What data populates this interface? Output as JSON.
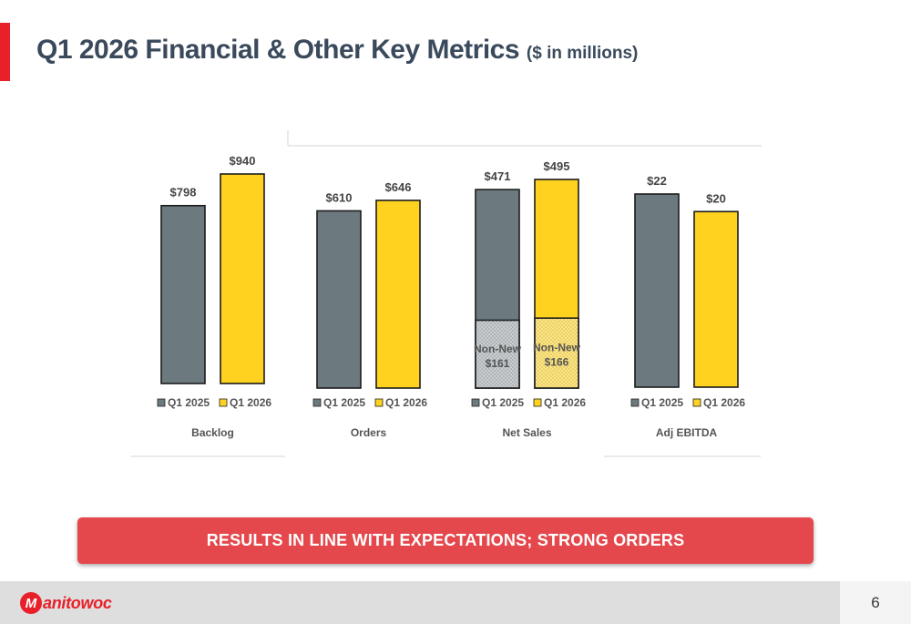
{
  "page": {
    "title": "Q1 2026 Financial & Other Key Metrics",
    "title_suffix": "($ in millions)",
    "banner": "RESULTS IN LINE WITH EXPECTATIONS; STRONG ORDERS",
    "page_number": "6",
    "logo_text": "anitowoc",
    "logo_letter": "M"
  },
  "colors": {
    "accent_red": "#e8202a",
    "title_color": "#3a4a5c",
    "q1_2025_bar": "#6c7a80",
    "q1_2026_bar": "#ffd21f",
    "banner_bg": "#e5484c",
    "footer_bg": "#dedede"
  },
  "chart_data": [
    {
      "type": "bar",
      "title": "Backlog",
      "categories": [
        "Q1 2025",
        "Q1 2026"
      ],
      "values": [
        798,
        940
      ],
      "labels": [
        "$798",
        "$940"
      ]
    },
    {
      "type": "bar",
      "title": "Orders",
      "categories": [
        "Q1 2025",
        "Q1 2026"
      ],
      "values": [
        610,
        646
      ],
      "labels": [
        "$610",
        "$646"
      ]
    },
    {
      "type": "bar",
      "title": "Net Sales",
      "categories": [
        "Q1 2025",
        "Q1 2026"
      ],
      "values": [
        471,
        495
      ],
      "labels": [
        "$471",
        "$495"
      ],
      "segments": [
        {
          "name": "Non-New",
          "values": [
            161,
            166
          ],
          "labels": [
            "$161",
            "$166"
          ]
        }
      ]
    },
    {
      "type": "bar",
      "title": "Adj EBITDA",
      "categories": [
        "Q1 2025",
        "Q1 2026"
      ],
      "values": [
        22,
        20
      ],
      "labels": [
        "$22",
        "$20"
      ]
    }
  ]
}
